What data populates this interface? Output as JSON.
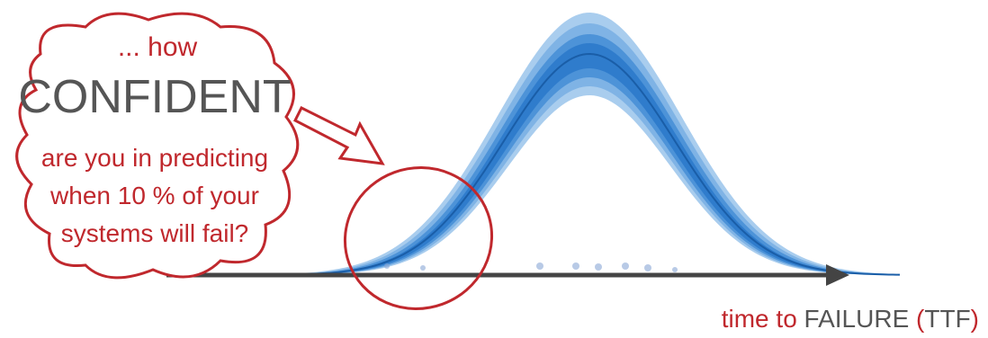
{
  "callout": {
    "lines": [
      "... how",
      "CONFIDENT",
      "are you in predicting",
      "when 10 % of your",
      "systems will fail?"
    ]
  },
  "axis_label": {
    "parts": [
      "time to",
      "FAILURE",
      "(",
      "TTF",
      ")"
    ]
  }
}
